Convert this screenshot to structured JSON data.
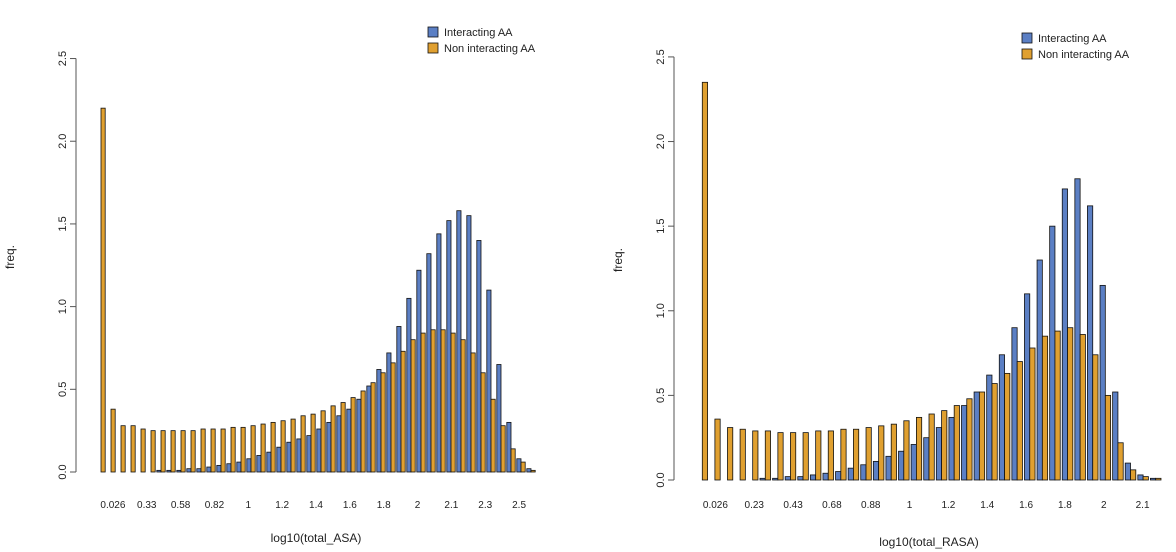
{
  "chart_data": [
    {
      "type": "bar",
      "xlabel": "log10(total_ASA)",
      "ylabel": "freq.",
      "ylim": [
        0,
        2.6
      ],
      "yticks": [
        "0.0",
        "0.5",
        "1.0",
        "1.5",
        "2.0",
        "2.5"
      ],
      "xtick_labels": [
        "0.026",
        "0.33",
        "0.58",
        "0.82",
        "1",
        "1.2",
        "1.4",
        "1.6",
        "1.8",
        "2",
        "2.1",
        "2.3",
        "2.5"
      ],
      "legend": {
        "placement": "top-right",
        "entries": [
          "Interacting AA",
          "Non interacting AA"
        ]
      },
      "series": [
        {
          "name": "Interacting AA",
          "color": "#5b7fc4",
          "values": [
            0.0,
            0.0,
            0.0,
            0.0,
            0.0,
            0.0,
            0.01,
            0.01,
            0.01,
            0.02,
            0.02,
            0.03,
            0.04,
            0.05,
            0.06,
            0.08,
            0.1,
            0.12,
            0.15,
            0.18,
            0.2,
            0.22,
            0.26,
            0.3,
            0.34,
            0.38,
            0.44,
            0.52,
            0.62,
            0.72,
            0.88,
            1.05,
            1.22,
            1.32,
            1.44,
            1.52,
            1.58,
            1.55,
            1.4,
            1.1,
            0.65,
            0.3,
            0.08,
            0.02
          ]
        },
        {
          "name": "Non interacting AA",
          "color": "#e0a030",
          "values": [
            2.2,
            0.38,
            0.28,
            0.28,
            0.26,
            0.25,
            0.25,
            0.25,
            0.25,
            0.25,
            0.26,
            0.26,
            0.26,
            0.27,
            0.27,
            0.28,
            0.29,
            0.3,
            0.31,
            0.32,
            0.34,
            0.35,
            0.37,
            0.4,
            0.42,
            0.45,
            0.49,
            0.54,
            0.6,
            0.66,
            0.73,
            0.8,
            0.84,
            0.86,
            0.86,
            0.84,
            0.8,
            0.72,
            0.6,
            0.44,
            0.28,
            0.14,
            0.06,
            0.01
          ]
        }
      ]
    },
    {
      "type": "bar",
      "xlabel": "log10(total_RASA)",
      "ylabel": "freq.",
      "ylim": [
        0,
        2.6
      ],
      "yticks": [
        "0.0",
        "0.5",
        "1.0",
        "1.5",
        "2.0",
        "2.5"
      ],
      "xtick_labels": [
        "0.026",
        "0.23",
        "0.43",
        "0.68",
        "0.88",
        "1",
        "1.2",
        "1.4",
        "1.6",
        "1.8",
        "2",
        "2.1"
      ],
      "legend": {
        "placement": "top-right",
        "entries": [
          "Interacting AA",
          "Non interacting AA"
        ]
      },
      "series": [
        {
          "name": "Interacting AA",
          "color": "#5b7fc4",
          "values": [
            0.0,
            0.0,
            0.0,
            0.0,
            0.0,
            0.01,
            0.01,
            0.02,
            0.02,
            0.03,
            0.04,
            0.05,
            0.07,
            0.09,
            0.11,
            0.14,
            0.17,
            0.21,
            0.25,
            0.31,
            0.37,
            0.44,
            0.52,
            0.62,
            0.74,
            0.9,
            1.1,
            1.3,
            1.5,
            1.72,
            1.78,
            1.62,
            1.15,
            0.52,
            0.1,
            0.03,
            0.01
          ]
        },
        {
          "name": "Non interacting AA",
          "color": "#e0a030",
          "values": [
            2.35,
            0.36,
            0.31,
            0.3,
            0.29,
            0.29,
            0.28,
            0.28,
            0.28,
            0.29,
            0.29,
            0.3,
            0.3,
            0.31,
            0.32,
            0.33,
            0.35,
            0.37,
            0.39,
            0.41,
            0.44,
            0.48,
            0.52,
            0.57,
            0.63,
            0.7,
            0.78,
            0.85,
            0.88,
            0.9,
            0.86,
            0.74,
            0.5,
            0.22,
            0.06,
            0.02,
            0.01
          ]
        }
      ]
    }
  ]
}
